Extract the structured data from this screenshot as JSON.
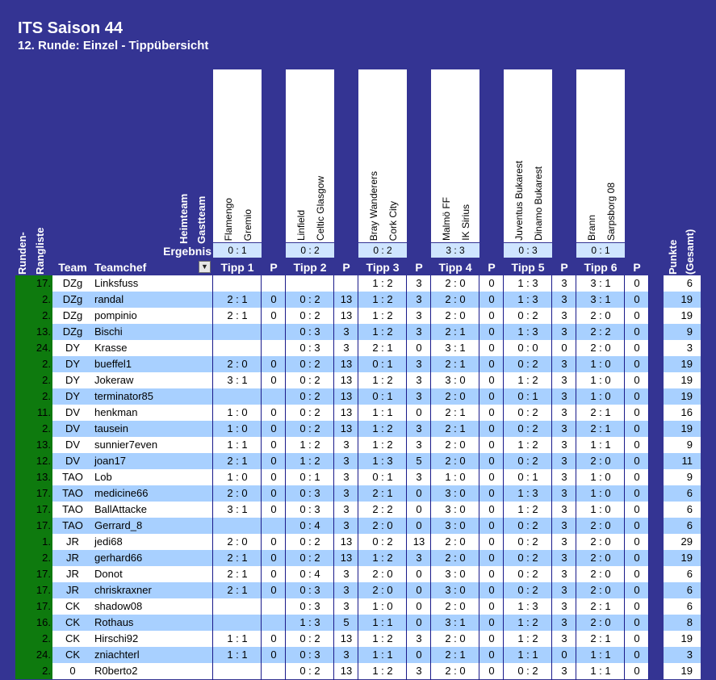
{
  "title": "ITS Saison 44",
  "subtitle": "12. Runde: Einzel - Tippübersicht",
  "labels": {
    "heimteam": "Heimteam",
    "gastteam": "Gastteam",
    "ergebnis": "Ergebnis",
    "runden_rangliste_1": "Runden-",
    "runden_rangliste_2": "Rangliste",
    "punkte_1": "Punkte",
    "punkte_2": "(Gesamt)"
  },
  "columns": {
    "team": "Team",
    "teamchef": "Teamchef",
    "filter_icon": "filter-dropdown-icon",
    "tipps": [
      "Tipp 1",
      "Tipp 2",
      "Tipp 3",
      "Tipp 4",
      "Tipp 5",
      "Tipp 6"
    ],
    "p": "P"
  },
  "matches": [
    {
      "home": "Flamengo",
      "away": "Gremio",
      "result": "0 : 1"
    },
    {
      "home": "Linfield",
      "away": "Celtic Glasgow",
      "result": "0 : 2"
    },
    {
      "home": "Bray Wanderers",
      "away": "Cork City",
      "result": "0 : 2"
    },
    {
      "home": "Malmö FF",
      "away": "IK Sirius",
      "result": "3 : 3"
    },
    {
      "home": "Juventus Bukarest",
      "away": "Dinamo Bukarest",
      "result": "0 : 3"
    },
    {
      "home": "Brann",
      "away": "Sarpsborg 08",
      "result": "0 : 1"
    }
  ],
  "colors": {
    "background": "#343493",
    "row_alt": "#a8d0ff",
    "row_white": "#ffffff",
    "rank_column": "#0e7a0e",
    "result_cell": "#cfe5ff",
    "grid_line": "#1a1a8a"
  },
  "rows": [
    {
      "rank": "17.",
      "team": "DZg",
      "chef": "Linksfuss",
      "tipps": [
        "",
        "",
        "",
        "",
        "1 : 2",
        "3",
        "2 : 0",
        "0",
        "1 : 3",
        "3",
        "3 : 1",
        "0"
      ],
      "total": "6"
    },
    {
      "rank": "2.",
      "team": "DZg",
      "chef": "randal",
      "tipps": [
        "2 : 1",
        "0",
        "0 : 2",
        "13",
        "1 : 2",
        "3",
        "2 : 0",
        "0",
        "1 : 3",
        "3",
        "3 : 1",
        "0"
      ],
      "total": "19"
    },
    {
      "rank": "2.",
      "team": "DZg",
      "chef": "pompinio",
      "tipps": [
        "2 : 1",
        "0",
        "0 : 2",
        "13",
        "1 : 2",
        "3",
        "2 : 0",
        "0",
        "0 : 2",
        "3",
        "2 : 0",
        "0"
      ],
      "total": "19"
    },
    {
      "rank": "13.",
      "team": "DZg",
      "chef": "Bischi",
      "tipps": [
        "",
        "",
        "0 : 3",
        "3",
        "1 : 2",
        "3",
        "2 : 1",
        "0",
        "1 : 3",
        "3",
        "2 : 2",
        "0"
      ],
      "total": "9"
    },
    {
      "rank": "24.",
      "team": "DY",
      "chef": "Krasse",
      "tipps": [
        "",
        "",
        "0 : 3",
        "3",
        "2 : 1",
        "0",
        "3 : 1",
        "0",
        "0 : 0",
        "0",
        "2 : 0",
        "0"
      ],
      "total": "3"
    },
    {
      "rank": "2.",
      "team": "DY",
      "chef": "bueffel1",
      "tipps": [
        "2 : 0",
        "0",
        "0 : 2",
        "13",
        "0 : 1",
        "3",
        "2 : 1",
        "0",
        "0 : 2",
        "3",
        "1 : 0",
        "0"
      ],
      "total": "19"
    },
    {
      "rank": "2.",
      "team": "DY",
      "chef": "Jokeraw",
      "tipps": [
        "3 : 1",
        "0",
        "0 : 2",
        "13",
        "1 : 2",
        "3",
        "3 : 0",
        "0",
        "1 : 2",
        "3",
        "1 : 0",
        "0"
      ],
      "total": "19"
    },
    {
      "rank": "2.",
      "team": "DY",
      "chef": "terminator85",
      "tipps": [
        "",
        "",
        "0 : 2",
        "13",
        "0 : 1",
        "3",
        "2 : 0",
        "0",
        "0 : 1",
        "3",
        "1 : 0",
        "0"
      ],
      "total": "19"
    },
    {
      "rank": "11.",
      "team": "DV",
      "chef": "henkman",
      "tipps": [
        "1 : 0",
        "0",
        "0 : 2",
        "13",
        "1 : 1",
        "0",
        "2 : 1",
        "0",
        "0 : 2",
        "3",
        "2 : 1",
        "0"
      ],
      "total": "16"
    },
    {
      "rank": "2.",
      "team": "DV",
      "chef": "tausein",
      "tipps": [
        "1 : 0",
        "0",
        "0 : 2",
        "13",
        "1 : 2",
        "3",
        "2 : 1",
        "0",
        "0 : 2",
        "3",
        "2 : 1",
        "0"
      ],
      "total": "19"
    },
    {
      "rank": "13.",
      "team": "DV",
      "chef": "sunnier7even",
      "tipps": [
        "1 : 1",
        "0",
        "1 : 2",
        "3",
        "1 : 2",
        "3",
        "2 : 0",
        "0",
        "1 : 2",
        "3",
        "1 : 1",
        "0"
      ],
      "total": "9"
    },
    {
      "rank": "12.",
      "team": "DV",
      "chef": "joan17",
      "tipps": [
        "2 : 1",
        "0",
        "1 : 2",
        "3",
        "1 : 3",
        "5",
        "2 : 0",
        "0",
        "0 : 2",
        "3",
        "2 : 0",
        "0"
      ],
      "total": "11"
    },
    {
      "rank": "13.",
      "team": "TAO",
      "chef": "Lob",
      "tipps": [
        "1 : 0",
        "0",
        "0 : 1",
        "3",
        "0 : 1",
        "3",
        "1 : 0",
        "0",
        "0 : 1",
        "3",
        "1 : 0",
        "0"
      ],
      "total": "9"
    },
    {
      "rank": "17.",
      "team": "TAO",
      "chef": "medicine66",
      "tipps": [
        "2 : 0",
        "0",
        "0 : 3",
        "3",
        "2 : 1",
        "0",
        "3 : 0",
        "0",
        "1 : 3",
        "3",
        "1 : 0",
        "0"
      ],
      "total": "6"
    },
    {
      "rank": "17.",
      "team": "TAO",
      "chef": "BallAttacke",
      "tipps": [
        "3 : 1",
        "0",
        "0 : 3",
        "3",
        "2 : 2",
        "0",
        "3 : 0",
        "0",
        "1 : 2",
        "3",
        "1 : 0",
        "0"
      ],
      "total": "6"
    },
    {
      "rank": "17.",
      "team": "TAO",
      "chef": "Gerrard_8",
      "tipps": [
        "",
        "",
        "0 : 4",
        "3",
        "2 : 0",
        "0",
        "3 : 0",
        "0",
        "0 : 2",
        "3",
        "2 : 0",
        "0"
      ],
      "total": "6"
    },
    {
      "rank": "1.",
      "team": "JR",
      "chef": "jedi68",
      "tipps": [
        "2 : 0",
        "0",
        "0 : 2",
        "13",
        "0 : 2",
        "13",
        "2 : 0",
        "0",
        "0 : 2",
        "3",
        "2 : 0",
        "0"
      ],
      "total": "29"
    },
    {
      "rank": "2.",
      "team": "JR",
      "chef": "gerhard66",
      "tipps": [
        "2 : 1",
        "0",
        "0 : 2",
        "13",
        "1 : 2",
        "3",
        "2 : 0",
        "0",
        "0 : 2",
        "3",
        "2 : 0",
        "0"
      ],
      "total": "19"
    },
    {
      "rank": "17.",
      "team": "JR",
      "chef": "Donot",
      "tipps": [
        "2 : 1",
        "0",
        "0 : 4",
        "3",
        "2 : 0",
        "0",
        "3 : 0",
        "0",
        "0 : 2",
        "3",
        "2 : 0",
        "0"
      ],
      "total": "6"
    },
    {
      "rank": "17.",
      "team": "JR",
      "chef": "chriskraxner",
      "tipps": [
        "2 : 1",
        "0",
        "0 : 3",
        "3",
        "2 : 0",
        "0",
        "3 : 0",
        "0",
        "0 : 2",
        "3",
        "2 : 0",
        "0"
      ],
      "total": "6"
    },
    {
      "rank": "17.",
      "team": "CK",
      "chef": "shadow08",
      "tipps": [
        "",
        "",
        "0 : 3",
        "3",
        "1 : 0",
        "0",
        "2 : 0",
        "0",
        "1 : 3",
        "3",
        "2 : 1",
        "0"
      ],
      "total": "6"
    },
    {
      "rank": "16.",
      "team": "CK",
      "chef": "Rothaus",
      "tipps": [
        "",
        "",
        "1 : 3",
        "5",
        "1 : 1",
        "0",
        "3 : 1",
        "0",
        "1 : 2",
        "3",
        "2 : 0",
        "0"
      ],
      "total": "8"
    },
    {
      "rank": "2.",
      "team": "CK",
      "chef": "Hirschi92",
      "tipps": [
        "1 : 1",
        "0",
        "0 : 2",
        "13",
        "1 : 2",
        "3",
        "2 : 0",
        "0",
        "1 : 2",
        "3",
        "2 : 1",
        "0"
      ],
      "total": "19"
    },
    {
      "rank": "24.",
      "team": "CK",
      "chef": "zniachterl",
      "tipps": [
        "1 : 1",
        "0",
        "0 : 3",
        "3",
        "1 : 1",
        "0",
        "2 : 1",
        "0",
        "1 : 1",
        "0",
        "1 : 1",
        "0"
      ],
      "total": "3"
    },
    {
      "rank": "2.",
      "team": "0",
      "chef": "R0berto2",
      "tipps": [
        "",
        "",
        "0 : 2",
        "13",
        "1 : 2",
        "3",
        "2 : 0",
        "0",
        "0 : 2",
        "3",
        "1 : 1",
        "0"
      ],
      "total": "19"
    }
  ]
}
